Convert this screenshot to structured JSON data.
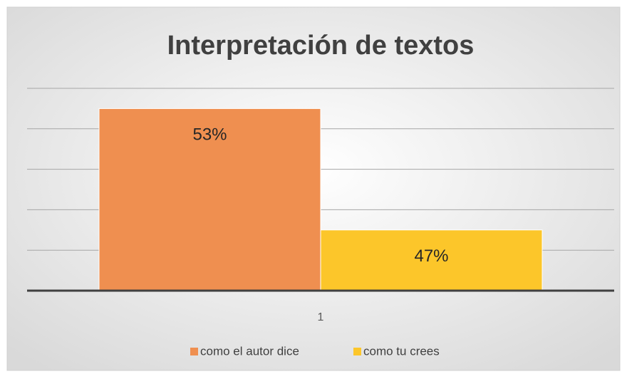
{
  "chart_data": {
    "type": "bar",
    "title": "Interpretación de textos",
    "categories": [
      "1"
    ],
    "series": [
      {
        "name": "como el autor dice",
        "color": "#ef8f50",
        "values": [
          53
        ],
        "value_labels": [
          "53%"
        ]
      },
      {
        "name": "como tu crees",
        "color": "#fcc62a",
        "values": [
          47
        ],
        "value_labels": [
          "47%"
        ]
      }
    ],
    "ylim": [
      44,
      54
    ],
    "yticks": [
      44,
      46,
      48,
      50,
      52,
      54
    ],
    "grid": true,
    "legend": "bottom"
  }
}
